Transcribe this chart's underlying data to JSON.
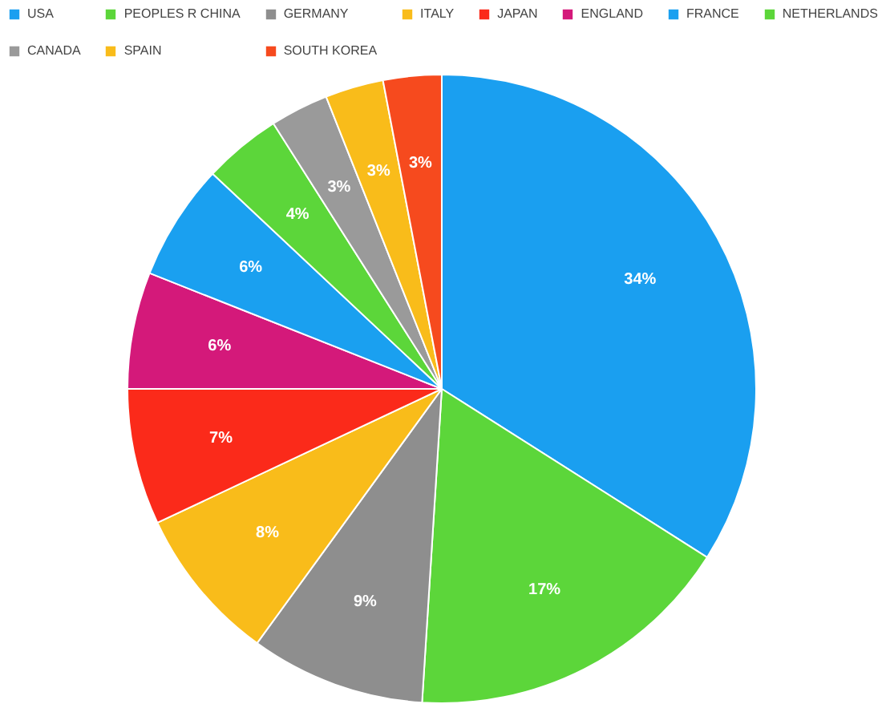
{
  "chart_data": {
    "type": "pie",
    "categories": [
      "USA",
      "PEOPLES R CHINA",
      "GERMANY",
      "ITALY",
      "JAPAN",
      "ENGLAND",
      "FRANCE",
      "NETHERLANDS",
      "CANADA",
      "SPAIN",
      "SOUTH KOREA"
    ],
    "values": [
      34,
      17,
      9,
      8,
      7,
      6,
      6,
      4,
      3,
      3,
      3
    ],
    "colors": [
      "#1a9ff0",
      "#5cd63a",
      "#8e8e8e",
      "#f9bc1a",
      "#fb2a1a",
      "#d4197a",
      "#1aa0f0",
      "#5cd63a",
      "#9a9a9a",
      "#f9bc1a",
      "#f64a1e"
    ],
    "value_labels": [
      "34%",
      "17%",
      "9%",
      "8%",
      "7%",
      "6%",
      "6%",
      "4%",
      "3%",
      "3%",
      "3%"
    ],
    "legend": "top"
  }
}
